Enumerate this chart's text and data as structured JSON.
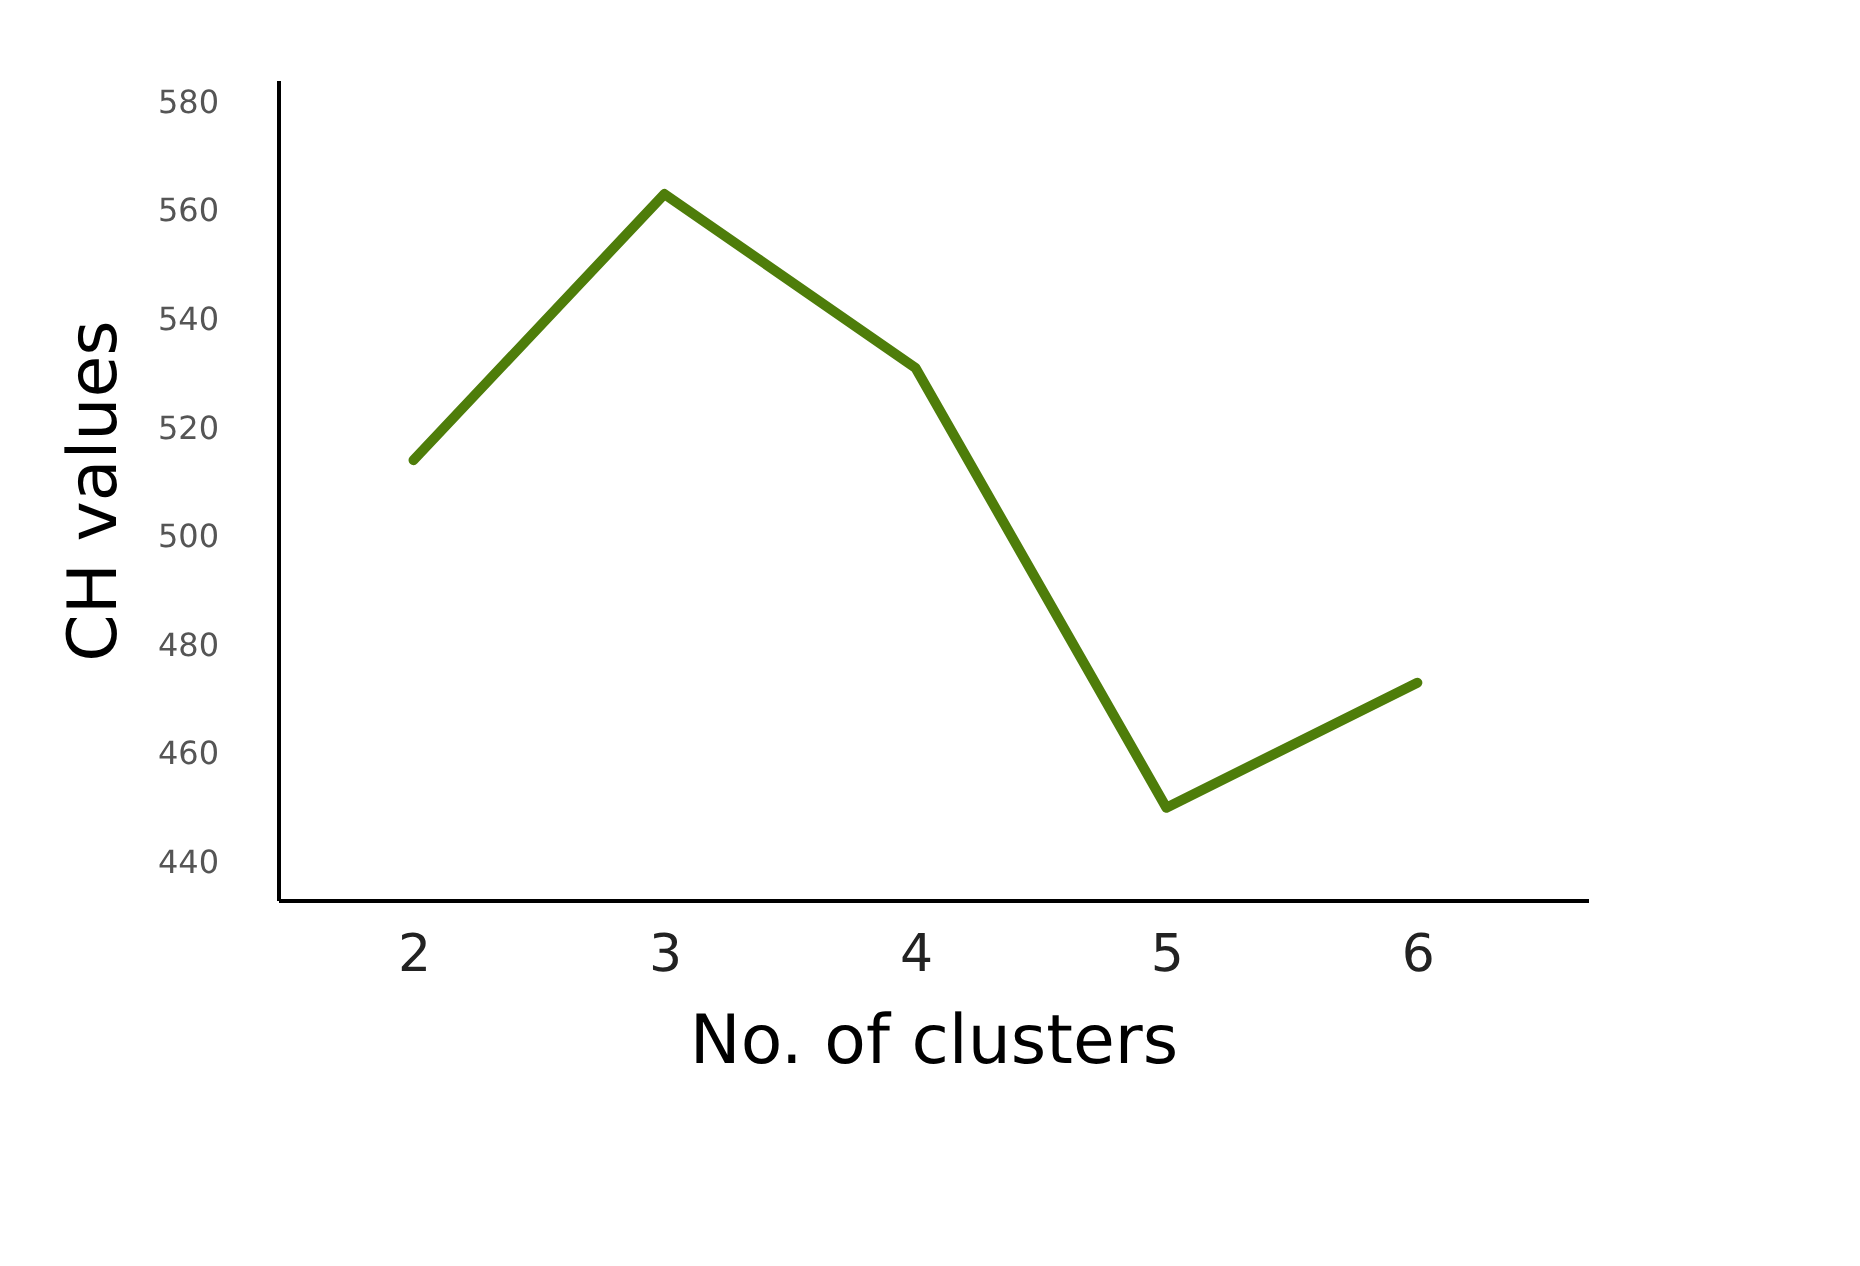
{
  "chart_data": {
    "type": "line",
    "xlabel": "No. of clusters",
    "ylabel": "CH values",
    "x": [
      2,
      3,
      4,
      5,
      6
    ],
    "series": [
      {
        "color": "#4e7d0a",
        "values": [
          514,
          563,
          531,
          450,
          473
        ]
      }
    ],
    "xlim": [
      1.46,
      6.68
    ],
    "xticks": [
      2,
      3,
      4,
      5,
      6
    ],
    "ylim": [
      433,
      584
    ],
    "yticks": [
      440,
      460,
      480,
      500,
      520,
      540,
      560,
      580
    ],
    "grid": false,
    "marker": "none",
    "line_style": "solid"
  }
}
